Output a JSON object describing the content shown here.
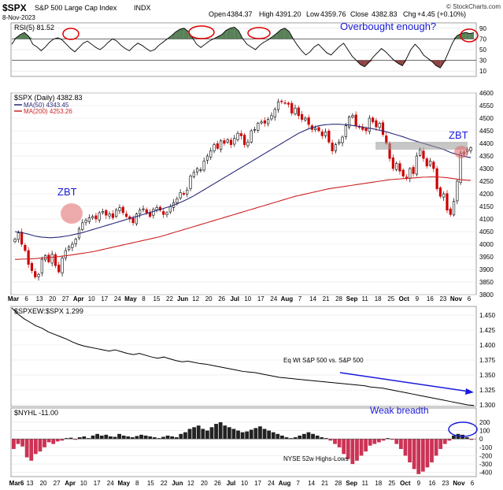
{
  "header": {
    "ticker": "$SPX",
    "name": "S&P 500 Large Cap Index",
    "exchange": "INDX",
    "date": "8-Nov-2023",
    "open_label": "Open",
    "open": "4384.37",
    "high_label": "High",
    "high": "4391.20",
    "low_label": "Low",
    "low": "4359.76",
    "close_label": "Close",
    "close": "4382.83",
    "chg_label": "Chg",
    "chg": "+4.45 (+0.10%)",
    "brand": "© StockCharts.com"
  },
  "colors": {
    "up": "#000000",
    "down": "#cc0000",
    "ma50": "#2a2a7a",
    "ma200": "#cc2222",
    "annotation_blue": "#1a1adb",
    "annotation_red": "#dd0000",
    "rsi_fill_high": "#3c6b3c",
    "rsi_fill_low": "#7a2222",
    "nyhl_up": "#222222",
    "nyhl_down": "#cc3355"
  },
  "chart_data": [
    {
      "type": "line",
      "panel": "rsi",
      "legend": "RSI(5) 81.52",
      "ylim": [
        0,
        100
      ],
      "ticks": [
        "90",
        "70",
        "50",
        "30",
        "10"
      ],
      "levels": [
        70,
        30
      ],
      "values": [
        60,
        72,
        78,
        82,
        75,
        60,
        55,
        48,
        55,
        64,
        70,
        72,
        68,
        60,
        52,
        46,
        54,
        62,
        66,
        60,
        54,
        50,
        56,
        64,
        70,
        66,
        58,
        52,
        48,
        56,
        62,
        58,
        52,
        47,
        50,
        58,
        64,
        70,
        76,
        83,
        88,
        90,
        84,
        72,
        60,
        54,
        60,
        66,
        70,
        74,
        78,
        86,
        90,
        92,
        85,
        70,
        60,
        55,
        50,
        58,
        64,
        68,
        74,
        80,
        87,
        90,
        84,
        70,
        58,
        48,
        40,
        46,
        55,
        60,
        52,
        44,
        40,
        48,
        56,
        62,
        50,
        38,
        30,
        22,
        18,
        26,
        36,
        44,
        52,
        46,
        38,
        30,
        24,
        20,
        34,
        50,
        60,
        52,
        40,
        34,
        28,
        20,
        16,
        28,
        46,
        64,
        76,
        80,
        82,
        80,
        81.5
      ],
      "annotations": [
        {
          "text": "Overbought enough?",
          "color": "#1a1adb"
        }
      ]
    },
    {
      "type": "candlestick",
      "panel": "price",
      "legend": "$SPX (Daily) 4382.83",
      "series": [
        {
          "name": "MA(50) 4343.45",
          "color": "#2a2a7a"
        },
        {
          "name": "MA(200) 4253.26",
          "color": "#cc2222"
        }
      ],
      "ylim": [
        3800,
        4600
      ],
      "ticks": [
        "4600",
        "4550",
        "4500",
        "4450",
        "4400",
        "4350",
        "4300",
        "4250",
        "4200",
        "4150",
        "4100",
        "4050",
        "4000",
        "3950",
        "3900",
        "3850",
        "3800"
      ],
      "closes": [
        4020,
        4045,
        4000,
        3975,
        3920,
        3895,
        3870,
        3880,
        3940,
        3955,
        3930,
        3960,
        3915,
        3890,
        3945,
        3975,
        3990,
        4000,
        4020,
        4060,
        4085,
        4095,
        4105,
        4110,
        4100,
        4125,
        4130,
        4115,
        4120,
        4105,
        4135,
        4145,
        4125,
        4110,
        4100,
        4085,
        4120,
        4135,
        4140,
        4125,
        4110,
        4138,
        4145,
        4135,
        4118,
        4125,
        4150,
        4165,
        4180,
        4205,
        4198,
        4215,
        4270,
        4285,
        4300,
        4295,
        4330,
        4350,
        4370,
        4395,
        4380,
        4410,
        4400,
        4415,
        4395,
        4420,
        4440,
        4430,
        4395,
        4405,
        4450,
        4455,
        4480,
        4485,
        4480,
        4495,
        4510,
        4535,
        4565,
        4565,
        4560,
        4555,
        4520,
        4540,
        4510,
        4495,
        4500,
        4475,
        4455,
        4460,
        4450,
        4430,
        4445,
        4405,
        4370,
        4395,
        4405,
        4425,
        4470,
        4505,
        4510,
        4470,
        4465,
        4455,
        4450,
        4500,
        4485,
        4465,
        4480,
        4435,
        4400,
        4340,
        4300,
        4320,
        4290,
        4270,
        4260,
        4300,
        4280,
        4350,
        4375,
        4340,
        4310,
        4330,
        4300,
        4220,
        4190,
        4200,
        4135,
        4118,
        4170,
        4250,
        4360,
        4365,
        4375,
        4382.83
      ],
      "ma50": [
        4050,
        4048,
        4046,
        4043,
        4040,
        4036,
        4032,
        4030,
        4028,
        4027,
        4026,
        4026,
        4027,
        4028,
        4030,
        4032,
        4034,
        4037,
        4040,
        4043,
        4046,
        4050,
        4054,
        4058,
        4062,
        4066,
        4070,
        4074,
        4078,
        4082,
        4086,
        4090,
        4094,
        4098,
        4102,
        4106,
        4110,
        4114,
        4118,
        4122,
        4126,
        4130,
        4134,
        4138,
        4142,
        4146,
        4150,
        4155,
        4160,
        4166,
        4172,
        4178,
        4185,
        4192,
        4200,
        4208,
        4216,
        4224,
        4232,
        4240,
        4248,
        4256,
        4264,
        4272,
        4280,
        4288,
        4296,
        4304,
        4312,
        4320,
        4328,
        4336,
        4344,
        4352,
        4360,
        4368,
        4376,
        4384,
        4392,
        4400,
        4408,
        4416,
        4424,
        4432,
        4440,
        4446,
        4452,
        4458,
        4462,
        4466,
        4470,
        4472,
        4474,
        4475,
        4476,
        4476,
        4476,
        4475,
        4474,
        4473,
        4471,
        4469,
        4467,
        4465,
        4462,
        4460,
        4458,
        4455,
        4452,
        4449,
        4446,
        4442,
        4438,
        4434,
        4430,
        4426,
        4421,
        4416,
        4412,
        4408,
        4404,
        4400,
        4396,
        4392,
        4388,
        4384,
        4380,
        4376,
        4370,
        4364,
        4360,
        4356,
        4352,
        4349,
        4346,
        4343.45
      ],
      "ma200": [
        3940,
        3940,
        3941,
        3941,
        3942,
        3942,
        3943,
        3944,
        3945,
        3946,
        3947,
        3948,
        3950,
        3951,
        3953,
        3954,
        3956,
        3958,
        3960,
        3962,
        3964,
        3966,
        3968,
        3970,
        3973,
        3976,
        3979,
        3982,
        3985,
        3988,
        3991,
        3994,
        3997,
        4000,
        4003,
        4006,
        4009,
        4012,
        4015,
        4018,
        4021,
        4024,
        4027,
        4030,
        4034,
        4038,
        4042,
        4046,
        4050,
        4054,
        4058,
        4062,
        4066,
        4070,
        4074,
        4078,
        4082,
        4086,
        4090,
        4094,
        4098,
        4102,
        4106,
        4110,
        4114,
        4118,
        4122,
        4126,
        4130,
        4134,
        4138,
        4142,
        4146,
        4150,
        4154,
        4158,
        4162,
        4166,
        4170,
        4174,
        4178,
        4182,
        4186,
        4190,
        4193,
        4196,
        4199,
        4202,
        4205,
        4208,
        4211,
        4214,
        4217,
        4220,
        4222,
        4224,
        4226,
        4228,
        4230,
        4232,
        4234,
        4236,
        4238,
        4240,
        4242,
        4244,
        4246,
        4248,
        4250,
        4252,
        4254,
        4256,
        4257,
        4258,
        4259,
        4260,
        4261,
        4262,
        4263,
        4264,
        4265,
        4266,
        4266,
        4267,
        4267,
        4267,
        4266,
        4265,
        4264,
        4262,
        4260,
        4258,
        4256,
        4255,
        4254,
        4253.26
      ],
      "annotations": [
        {
          "text": "ZBT",
          "color": "#1a1adb"
        },
        {
          "text": "ZBT",
          "color": "#1a1adb"
        }
      ]
    },
    {
      "type": "line",
      "panel": "ratio",
      "legend": "$SPXEW:$SPX 1.299",
      "ylim": [
        1.3,
        1.45
      ],
      "ticks": [
        "1.450",
        "1.425",
        "1.400",
        "1.375",
        "1.350",
        "1.325",
        "1.300"
      ],
      "values": [
        1.462,
        1.452,
        1.444,
        1.438,
        1.432,
        1.428,
        1.422,
        1.418,
        1.414,
        1.41,
        1.405,
        1.401,
        1.398,
        1.396,
        1.394,
        1.392,
        1.39,
        1.392,
        1.389,
        1.386,
        1.384,
        1.386,
        1.383,
        1.38,
        1.378,
        1.38,
        1.377,
        1.374,
        1.372,
        1.373,
        1.371,
        1.369,
        1.368,
        1.366,
        1.364,
        1.362,
        1.36,
        1.358,
        1.356,
        1.355,
        1.354,
        1.352,
        1.35,
        1.348,
        1.346,
        1.345,
        1.344,
        1.343,
        1.342,
        1.341,
        1.34,
        1.339,
        1.338,
        1.337,
        1.336,
        1.335,
        1.334,
        1.333,
        1.332,
        1.33,
        1.329,
        1.328,
        1.326,
        1.324,
        1.322,
        1.32,
        1.318,
        1.316,
        1.314,
        1.312,
        1.31,
        1.308,
        1.306,
        1.304,
        1.302,
        1.3,
        1.299
      ],
      "annotations": [
        {
          "text": "Eq Wt S&P 500 vs. S&P 500",
          "color": "#000000"
        }
      ]
    },
    {
      "type": "bar",
      "panel": "nyhl",
      "legend": "$NYHL -11.00",
      "ylim": [
        -450,
        350
      ],
      "ticks": [
        "200",
        "100",
        "0",
        "-100",
        "-200",
        "-300",
        "-400"
      ],
      "values": [
        -120,
        -60,
        -90,
        -220,
        -260,
        -180,
        -150,
        -100,
        -40,
        -60,
        -30,
        -20,
        10,
        15,
        -10,
        20,
        30,
        10,
        40,
        60,
        40,
        50,
        30,
        25,
        60,
        40,
        30,
        20,
        35,
        50,
        40,
        30,
        20,
        10,
        25,
        40,
        30,
        20,
        60,
        80,
        120,
        140,
        160,
        120,
        100,
        140,
        180,
        200,
        160,
        140,
        120,
        100,
        80,
        90,
        110,
        130,
        150,
        120,
        100,
        80,
        60,
        40,
        20,
        10,
        20,
        40,
        60,
        80,
        60,
        40,
        20,
        10,
        -20,
        -60,
        -100,
        -180,
        -240,
        -300,
        -260,
        -200,
        -150,
        -80,
        -60,
        -40,
        -20,
        10,
        -10,
        -60,
        -120,
        -200,
        -280,
        -360,
        -420,
        -390,
        -340,
        -280,
        -200,
        -120,
        -60,
        -20,
        40,
        60,
        50,
        20,
        -11
      ],
      "annotations": [
        {
          "text": "Weak breadth",
          "color": "#1a1adb"
        },
        {
          "text": "NYSE 52w Highs-Lows",
          "color": "#000000"
        }
      ]
    }
  ],
  "x_axis": {
    "top_labels": [
      "Mar",
      "6",
      "13",
      "20",
      "27",
      "Apr",
      "10",
      "17",
      "24",
      "May",
      "8",
      "15",
      "22",
      "Jun",
      "12",
      "20",
      "26",
      "Jul",
      "10",
      "17",
      "24",
      "Aug",
      "7",
      "14",
      "21",
      "28",
      "Sep",
      "11",
      "18",
      "25",
      "Oct",
      "9",
      "16",
      "23",
      "Nov",
      "6"
    ],
    "bottom_labels": [
      "Mar6",
      "13",
      "20",
      "27",
      "Apr",
      "10",
      "17",
      "24",
      "May",
      "8",
      "15",
      "22",
      "Jun",
      "12",
      "20",
      "26",
      "Jul",
      "10",
      "17",
      "24",
      "Aug",
      "7",
      "14",
      "21",
      "28",
      "Sep",
      "11",
      "18",
      "25",
      "Oct",
      "9",
      "16",
      "23",
      "Nov",
      "6"
    ]
  }
}
